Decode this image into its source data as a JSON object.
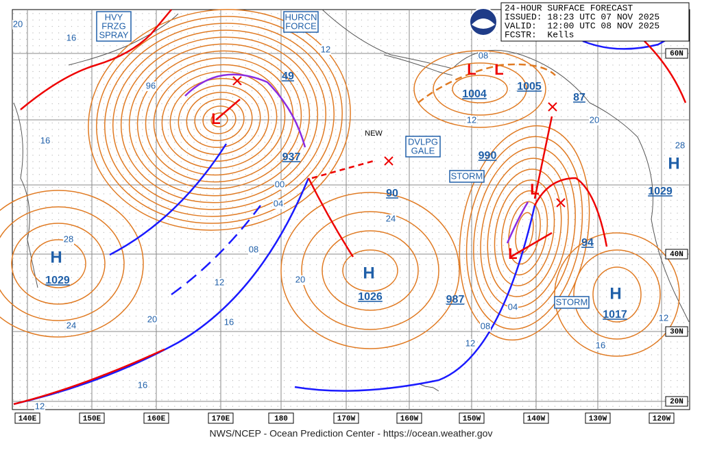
{
  "header": {
    "lines": [
      "24-HOUR SURFACE FORECAST",
      "ISSUED: 18:23 UTC 07 NOV 2025",
      "VALID:  12:00 UTC 08 NOV 2025",
      "FCSTR:  Kells"
    ]
  },
  "footer": "NWS/NCEP - Ocean Prediction Center - https://ocean.weather.gov",
  "longitudes": [
    "140E",
    "150E",
    "160E",
    "170E",
    "180",
    "170W",
    "160W",
    "150W",
    "140W",
    "130W",
    "120W"
  ],
  "latitudes": [
    "60N",
    "40N",
    "30N",
    "20N"
  ],
  "warnings": [
    {
      "lines": [
        "HVY",
        "FRZG",
        "SPRAY"
      ]
    },
    {
      "lines": [
        "HURCN",
        "FORCE"
      ]
    },
    {
      "lines": [
        "DVLPG",
        "GALE"
      ]
    },
    {
      "lines": [
        "STORM"
      ]
    },
    {
      "lines": [
        "STORM"
      ]
    }
  ],
  "highs": [
    {
      "symbol": "H",
      "pressure": "1029"
    },
    {
      "symbol": "H",
      "pressure": "1026"
    },
    {
      "symbol": "H",
      "pressure": "1017"
    },
    {
      "symbol": "H",
      "pressure": "1029"
    }
  ],
  "lows": [
    {
      "symbol": "L",
      "pressure": "937"
    },
    {
      "symbol": "L",
      "pressure": "1004"
    },
    {
      "symbol": "L",
      "pressure": "1005"
    },
    {
      "symbol": "L",
      "pressure": "990"
    },
    {
      "symbol": "L",
      "pressure": "987"
    }
  ],
  "forecast_pressures": [
    "49",
    "87",
    "90",
    "94"
  ],
  "isobar_labels": [
    "20",
    "16",
    "96",
    "12",
    "16",
    "28",
    "24",
    "20",
    "16",
    "12",
    "00",
    "04",
    "08",
    "12",
    "16",
    "20",
    "24",
    "12",
    "08",
    "20",
    "28",
    "04",
    "08",
    "12",
    "16",
    "12"
  ],
  "annotations": [
    "NEW"
  ]
}
